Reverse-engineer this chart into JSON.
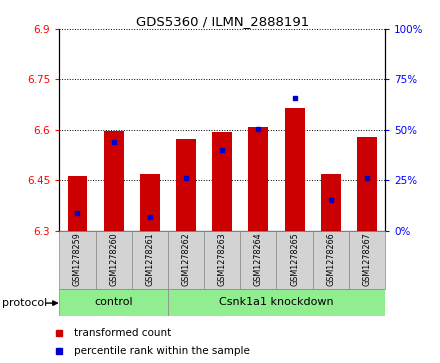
{
  "title": "GDS5360 / ILMN_2888191",
  "samples": [
    "GSM1278259",
    "GSM1278260",
    "GSM1278261",
    "GSM1278262",
    "GSM1278263",
    "GSM1278264",
    "GSM1278265",
    "GSM1278266",
    "GSM1278267"
  ],
  "bar_bottom": 6.3,
  "bar_tops": [
    6.462,
    6.597,
    6.468,
    6.572,
    6.594,
    6.607,
    6.665,
    6.468,
    6.577
  ],
  "blue_positions": [
    6.352,
    6.563,
    6.34,
    6.455,
    6.54,
    6.603,
    6.695,
    6.392,
    6.455
  ],
  "ylim": [
    6.3,
    6.9
  ],
  "yticks_left": [
    6.3,
    6.45,
    6.6,
    6.75,
    6.9
  ],
  "yticks_right": [
    0,
    25,
    50,
    75,
    100
  ],
  "bar_color": "#cc0000",
  "blue_color": "#0000cc",
  "bar_width": 0.55,
  "control_label": "control",
  "knockdown_label": "Csnk1a1 knockdown",
  "protocol_label": "protocol",
  "legend_red_label": "transformed count",
  "legend_blue_label": "percentile rank within the sample",
  "panel_color": "#d3d3d3",
  "group_bg": "#90ee90",
  "n_control": 3,
  "n_knockdown": 6
}
